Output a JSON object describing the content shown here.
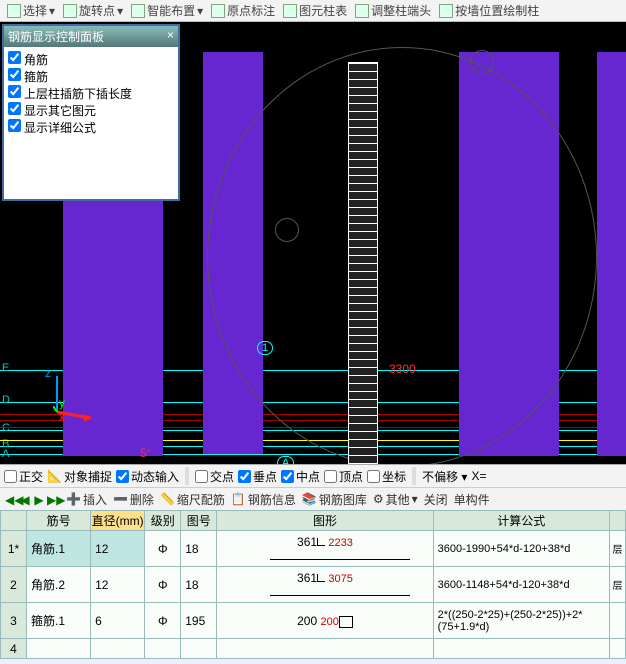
{
  "toolbar": {
    "select": "选择",
    "rotate": "旋转点",
    "smart": "智能布置",
    "origin": "原点标注",
    "elemtable": "图元柱表",
    "adjust": "调整柱端头",
    "wallcol": "按墙位置绘制柱"
  },
  "panel": {
    "title": "钢筋显示控制面板",
    "items": [
      "角筋",
      "箍筋",
      "上层柱插筋下插长度",
      "显示其它图元",
      "显示详细公式"
    ]
  },
  "view": {
    "dim1": "3300",
    "dim2": "3300",
    "angle": "5°",
    "num": "1",
    "floors": [
      "E",
      "D",
      "C",
      "B",
      "A"
    ],
    "axes": {
      "z": "z",
      "y": "y",
      "x": "x"
    }
  },
  "snapbar": {
    "ortho": "正交",
    "osnap": "对象捕捉",
    "dyn": "动态输入",
    "cross": "交点",
    "perp": "垂点",
    "mid": "中点",
    "apex": "顶点",
    "coord": "坐标",
    "offset": "不偏移",
    "xlabel": "X="
  },
  "cmdbar": {
    "insert": "插入",
    "delete": "删除",
    "scale": "缩尺配筋",
    "info": "钢筋信息",
    "lib": "钢筋图库",
    "other": "其他",
    "close": "关闭",
    "unit": "单构件"
  },
  "table": {
    "headers": [
      "",
      "筋号",
      "直径(mm)",
      "级别",
      "图号",
      "图形",
      "计算公式",
      ""
    ],
    "rows": [
      {
        "n": "1*",
        "id": "角筋.1",
        "d": "12",
        "g": "Φ",
        "fig": "18",
        "shape": {
          "pre": "361",
          "mid": "2233"
        },
        "formula": "3600-1990+54*d-120+38*d",
        "f": "层"
      },
      {
        "n": "2",
        "id": "角筋.2",
        "d": "12",
        "g": "Φ",
        "fig": "18",
        "shape": {
          "pre": "361",
          "mid": "3075"
        },
        "formula": "3600-1148+54*d-120+38*d",
        "f": "层"
      },
      {
        "n": "3",
        "id": "箍筋.1",
        "d": "6",
        "g": "Φ",
        "fig": "195",
        "shape": {
          "pre": "200",
          "box": "200"
        },
        "formula": "2*((250-2*25)+(250-2*25))+2*(75+1.9*d)",
        "f": ""
      },
      {
        "n": "4",
        "id": "",
        "d": "",
        "g": "",
        "fig": "",
        "shape": null,
        "formula": "",
        "f": ""
      }
    ]
  }
}
